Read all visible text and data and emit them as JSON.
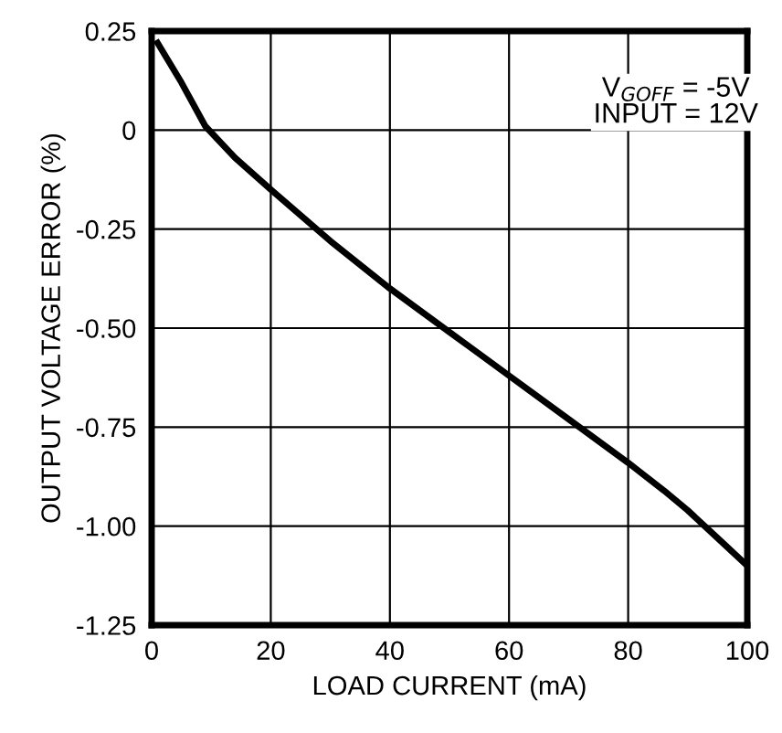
{
  "chart_data": {
    "type": "line",
    "xlabel": "LOAD CURRENT (mA)",
    "ylabel": "OUTPUT VOLTAGE ERROR (%)",
    "x": [
      1,
      5,
      9,
      14,
      20,
      30,
      40,
      50,
      60,
      70,
      80,
      86,
      90,
      95,
      100
    ],
    "series": [
      {
        "color": "#000000",
        "values": [
          0.22,
          0.12,
          0.01,
          -0.07,
          -0.15,
          -0.28,
          -0.4,
          -0.51,
          -0.62,
          -0.73,
          -0.84,
          -0.91,
          -0.96,
          -1.03,
          -1.1
        ]
      }
    ],
    "xlim": [
      0,
      100
    ],
    "xticks": [
      0,
      20,
      40,
      60,
      80,
      100
    ],
    "ylim": [
      -1.25,
      0.25
    ],
    "yticks": [
      {
        "value": 0.25,
        "label": "0.25"
      },
      0,
      {
        "value": -0.25,
        "label": "-0.25"
      },
      {
        "value": -0.5,
        "label": "-0.50"
      },
      {
        "value": -0.75,
        "label": "-0.75"
      },
      {
        "value": -1.0,
        "label": "-1.00"
      },
      {
        "value": -1.25,
        "label": "-1.25"
      }
    ],
    "grid": true,
    "marker": "none",
    "line_style": "solid",
    "annotations": [
      "V$_{GOFF}$ = -5V\nINPUT = 12V"
    ]
  }
}
